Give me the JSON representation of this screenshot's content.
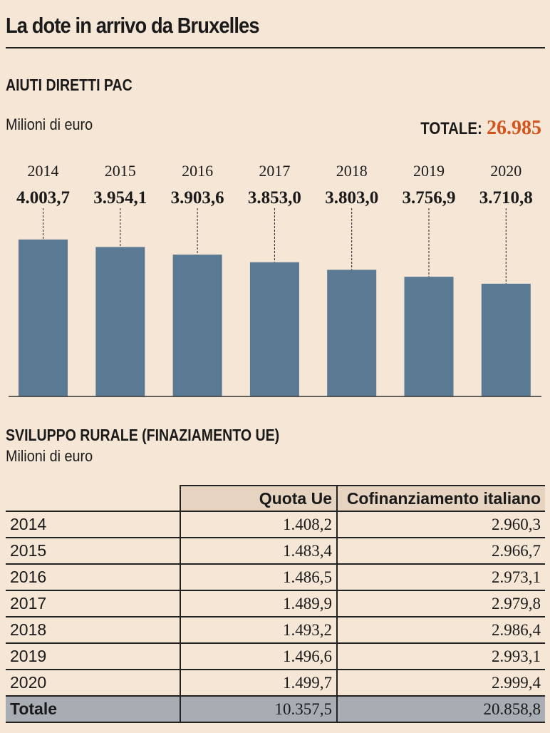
{
  "title": "La dote in arrivo da Bruxelles",
  "chart_data": {
    "type": "bar",
    "title": "AIUTI DIRETTI PAC",
    "ylabel": "Milioni di euro",
    "total_label": "TOTALE:",
    "total_value": "26.985",
    "categories": [
      "2014",
      "2015",
      "2016",
      "2017",
      "2018",
      "2019",
      "2020"
    ],
    "values": [
      4003.7,
      3954.1,
      3903.6,
      3853.0,
      3803.0,
      3756.9,
      3710.8
    ],
    "labels": [
      "4.003,7",
      "3.954,1",
      "3.903,6",
      "3.853,0",
      "3.803,0",
      "3.756,9",
      "3.710,8"
    ],
    "colors": {
      "bar": "#5a7a94",
      "total": "#d4541e"
    }
  },
  "table": {
    "title": "SVILUPPO RURALE (FINAZIAMENTO UE)",
    "subtitle": "Milioni di euro",
    "headers": [
      "",
      "Quota Ue",
      "Cofinanziamento italiano"
    ],
    "rows": [
      [
        "2014",
        "1.408,2",
        "2.960,3"
      ],
      [
        "2015",
        "1.483,4",
        "2.966,7"
      ],
      [
        "2016",
        "1.486,5",
        "2.973,1"
      ],
      [
        "2017",
        "1.489,9",
        "2.979,8"
      ],
      [
        "2018",
        "1.493,2",
        "2.986,4"
      ],
      [
        "2019",
        "1.496,6",
        "2.993,1"
      ],
      [
        "2020",
        "1.499,7",
        "2.999,4"
      ]
    ],
    "total": [
      "Totale",
      "10.357,5",
      "20.858,8"
    ]
  }
}
